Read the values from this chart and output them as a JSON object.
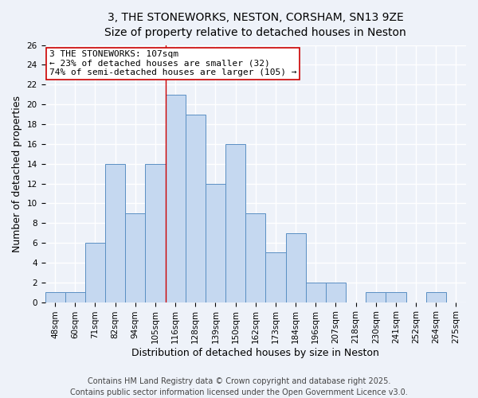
{
  "title_line1": "3, THE STONEWORKS, NESTON, CORSHAM, SN13 9ZE",
  "title_line2": "Size of property relative to detached houses in Neston",
  "xlabel": "Distribution of detached houses by size in Neston",
  "ylabel": "Number of detached properties",
  "bar_labels": [
    "48sqm",
    "60sqm",
    "71sqm",
    "82sqm",
    "94sqm",
    "105sqm",
    "116sqm",
    "128sqm",
    "139sqm",
    "150sqm",
    "162sqm",
    "173sqm",
    "184sqm",
    "196sqm",
    "207sqm",
    "218sqm",
    "230sqm",
    "241sqm",
    "252sqm",
    "264sqm",
    "275sqm"
  ],
  "bar_values": [
    1,
    1,
    6,
    14,
    9,
    14,
    21,
    19,
    12,
    16,
    9,
    5,
    7,
    2,
    2,
    0,
    1,
    1,
    0,
    1,
    0
  ],
  "bar_color": "#c5d8f0",
  "bar_edge_color": "#5a8fc3",
  "vline_x": 5.5,
  "vline_color": "#cc0000",
  "annotation_text": "3 THE STONEWORKS: 107sqm\n← 23% of detached houses are smaller (32)\n74% of semi-detached houses are larger (105) →",
  "annotation_box_color": "white",
  "annotation_box_edgecolor": "#cc0000",
  "ylim": [
    0,
    26
  ],
  "yticks": [
    0,
    2,
    4,
    6,
    8,
    10,
    12,
    14,
    16,
    18,
    20,
    22,
    24,
    26
  ],
  "footer_line1": "Contains HM Land Registry data © Crown copyright and database right 2025.",
  "footer_line2": "Contains public sector information licensed under the Open Government Licence v3.0.",
  "background_color": "#eef2f9",
  "grid_color": "white",
  "title_fontsize": 10,
  "axis_label_fontsize": 9,
  "tick_fontsize": 7.5,
  "annotation_fontsize": 8,
  "footer_fontsize": 7
}
